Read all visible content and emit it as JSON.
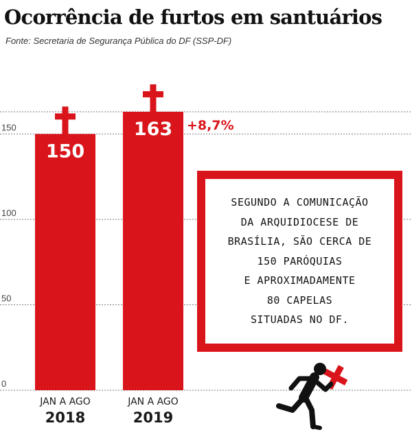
{
  "header": {
    "title": "Ocorrência de furtos em santuários",
    "source": "Fonte: Secretaria de Segurança Pública do DF (SSP-DF)"
  },
  "colors": {
    "bar": "#d9141b",
    "accent_text": "#d9141b",
    "grid": "#777777",
    "text": "#1a1a1a"
  },
  "chart_data": {
    "type": "bar",
    "categories": [
      {
        "line1": "JAN A AGO",
        "line2": "2018"
      },
      {
        "line1": "JAN A AGO",
        "line2": "2019"
      }
    ],
    "values": [
      150,
      163
    ],
    "data_labels": [
      "150",
      "163"
    ],
    "y_ticks": [
      0,
      50,
      100,
      150
    ],
    "y_tick_labels": [
      "0",
      "50",
      "100",
      "150"
    ],
    "ylim": [
      0,
      163
    ],
    "grid": true,
    "annotation": "+8,7%",
    "bar_marker_icon": "cross-icon"
  },
  "callout": {
    "lines": [
      "SEGUNDO A COMUNICAÇÃO",
      "DA ARQUIDIOCESE DE",
      "BRASÍLIA, SÃO CERCA DE",
      "150 PARÓQUIAS",
      "E APROXIMADAMENTE",
      "80 CAPELAS",
      "SITUADAS NO DF."
    ]
  },
  "illustration": {
    "icon": "running-thief-with-cross-icon"
  }
}
